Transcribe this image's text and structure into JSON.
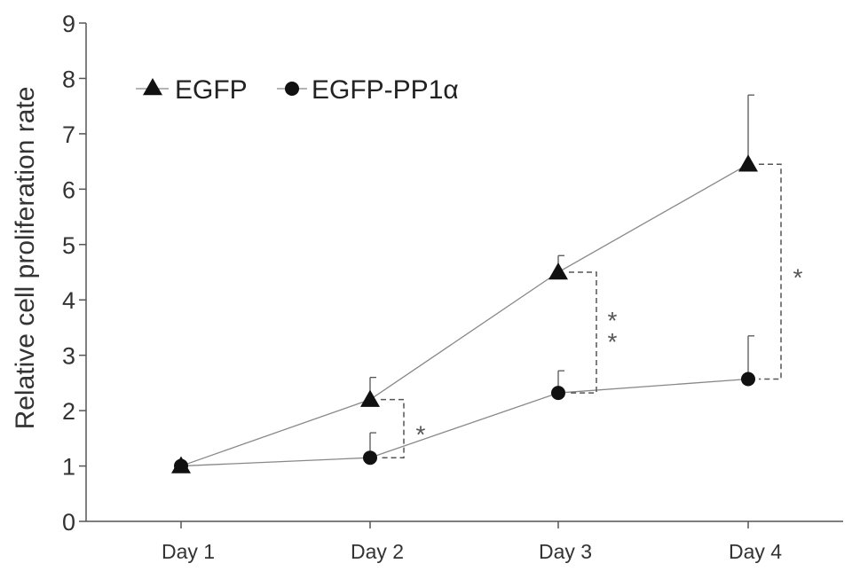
{
  "chart_data": {
    "type": "line",
    "title": "",
    "xlabel": "",
    "ylabel": "Relative cell proliferation rate",
    "ylim": [
      0,
      9
    ],
    "yticks": [
      0,
      1,
      2,
      3,
      4,
      5,
      6,
      7,
      8,
      9
    ],
    "categories": [
      "Day 1",
      "Day 2",
      "Day 3",
      "Day 4"
    ],
    "grid": false,
    "legend_position": "top-left",
    "series": [
      {
        "name": "EGFP",
        "marker": "triangle",
        "values": [
          1.0,
          2.2,
          4.5,
          6.45
        ],
        "error_upper": [
          0.0,
          0.4,
          0.3,
          1.25
        ]
      },
      {
        "name": "EGFP-PP1α",
        "marker": "circle",
        "values": [
          1.0,
          1.15,
          2.32,
          2.57
        ],
        "error_upper": [
          0.0,
          0.45,
          0.4,
          0.78
        ]
      }
    ],
    "significance": [
      {
        "category": "Day 2",
        "label": "*"
      },
      {
        "category": "Day 3",
        "label": "**"
      },
      {
        "category": "Day 4",
        "label": "*"
      }
    ],
    "colors": {
      "axis": "#555555",
      "line": "#888888",
      "marker": "#111111",
      "bracket": "#555555"
    }
  }
}
